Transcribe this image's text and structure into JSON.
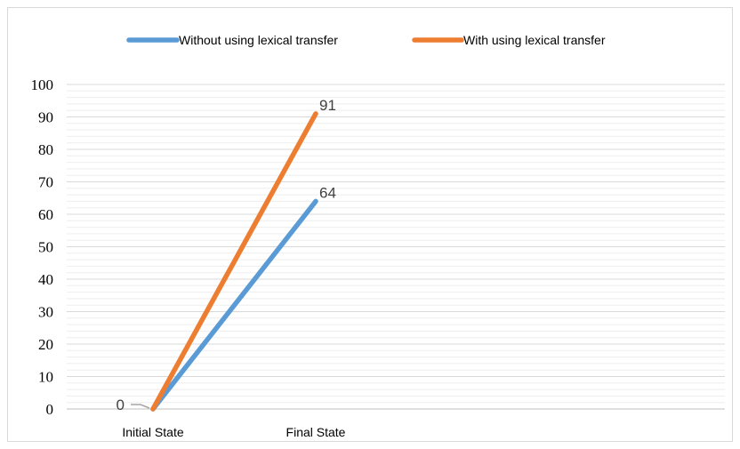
{
  "chart_data": {
    "type": "line",
    "categories": [
      "Initial State",
      "Final State"
    ],
    "series": [
      {
        "name": "Without using lexical transfer",
        "values": [
          0,
          64
        ],
        "color": "#5b9bd5",
        "value_labels": [
          "0",
          "64"
        ]
      },
      {
        "name": "With using lexical transfer",
        "values": [
          0,
          91
        ],
        "color": "#ed7d31",
        "value_labels": [
          "",
          "91"
        ]
      }
    ],
    "title": "",
    "xlabel": "",
    "ylabel": "",
    "ylim": [
      0,
      100
    ],
    "yticks": [
      "0",
      "10",
      "20",
      "30",
      "40",
      "50",
      "60",
      "70",
      "80",
      "90",
      "100"
    ],
    "grid": true,
    "legend_position": "top"
  }
}
